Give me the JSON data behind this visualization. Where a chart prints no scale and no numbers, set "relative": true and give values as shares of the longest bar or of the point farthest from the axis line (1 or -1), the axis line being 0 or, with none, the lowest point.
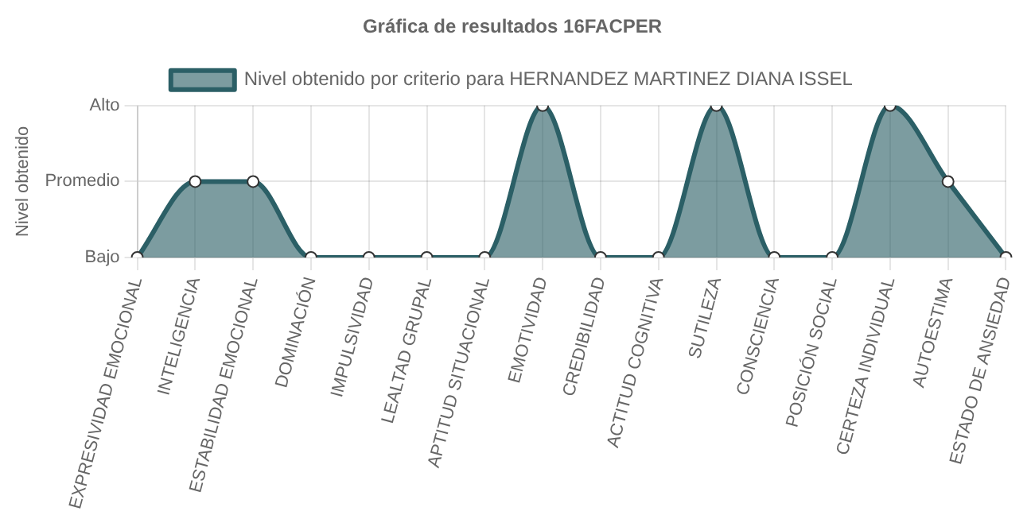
{
  "chart_data": {
    "type": "area",
    "title": "Gráfica de resultados 16FACPER",
    "ylabel": "Nivel obtenido",
    "categories": [
      "EXPRESIVIDAD EMOCIONAL",
      "INTELIGENCIA",
      "ESTABILIDAD EMOCIONAL",
      "DOMINACIÓN",
      "IMPULSIVIDAD",
      "LEALTAD GRUPAL",
      "APTITUD SITUACIONAL",
      "EMOTIVIDAD",
      "CREDIBILIDAD",
      "ACTITUD COGNITIVA",
      "SUTILEZA",
      "CONSCIENCIA",
      "POSICIÓN SOCIAL",
      "CERTEZA INDIVIDUAL",
      "AUTOESTIMA",
      "ESTADO DE ANSIEDAD"
    ],
    "series": [
      {
        "name": "Nivel obtenido por criterio para HERNANDEZ MARTINEZ DIANA ISSEL",
        "color": "#2b5f66",
        "values": [
          0,
          0.5,
          0.5,
          0,
          0,
          0,
          0,
          1,
          0,
          0,
          1,
          0,
          0,
          1,
          0.5,
          0
        ]
      }
    ],
    "relative": true,
    "y_categories": [
      "Alto",
      "Promedio",
      "Bajo"
    ],
    "grid": true,
    "legend": "top",
    "marker": "circle"
  }
}
